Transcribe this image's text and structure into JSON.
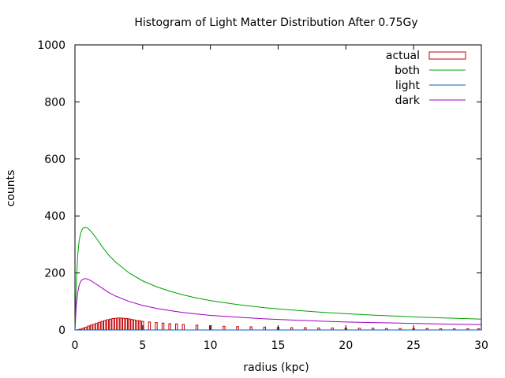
{
  "chart_data": {
    "type": "line",
    "title": "Histogram of Light Matter Distribution After 0.75Gy",
    "xlabel": "radius (kpc)",
    "ylabel": "counts",
    "xlim": [
      0,
      30
    ],
    "ylim": [
      0,
      1000
    ],
    "xticks": [
      0,
      5,
      10,
      15,
      20,
      25,
      30
    ],
    "yticks": [
      0,
      200,
      400,
      600,
      800,
      1000
    ],
    "grid": false,
    "legend_position": "top-right",
    "series": [
      {
        "name": "actual",
        "style": "histogram-bars",
        "color": "#c00000",
        "x": [
          0.2,
          0.4,
          0.6,
          0.8,
          1.0,
          1.2,
          1.4,
          1.6,
          1.8,
          2.0,
          2.2,
          2.4,
          2.6,
          2.8,
          3.0,
          3.2,
          3.4,
          3.6,
          3.8,
          4.0,
          4.2,
          4.4,
          4.6,
          4.8,
          5.0,
          5.5,
          6.0,
          6.5,
          7.0,
          7.5,
          8.0,
          9.0,
          10.0,
          11.0,
          12.0,
          13.0,
          14.0,
          15.0,
          16.0,
          17.0,
          18.0,
          19.0,
          20.0,
          21.0,
          22.0,
          23.0,
          24.0,
          25.0,
          26.0,
          27.0,
          28.0,
          29.0,
          29.8
        ],
        "values": [
          1,
          3,
          6,
          10,
          14,
          17,
          20,
          24,
          27,
          30,
          33,
          36,
          38,
          40,
          41,
          42,
          42,
          41,
          40,
          39,
          37,
          35,
          33,
          32,
          30,
          28,
          26,
          24,
          22,
          21,
          19,
          17,
          15,
          13,
          12,
          11,
          10,
          9,
          8,
          8,
          7,
          7,
          6,
          6,
          6,
          5,
          5,
          5,
          5,
          4,
          4,
          4,
          4
        ]
      },
      {
        "name": "both",
        "style": "line",
        "color": "#00a000",
        "x": [
          0,
          0.1,
          0.2,
          0.3,
          0.4,
          0.5,
          0.6,
          0.7,
          0.8,
          0.9,
          1.0,
          1.2,
          1.5,
          2.0,
          2.5,
          3.0,
          4.0,
          5.0,
          6.0,
          7.0,
          8.0,
          9.0,
          10.0,
          12.0,
          14.0,
          16.0,
          18.0,
          20.0,
          22.0,
          24.0,
          26.0,
          28.0,
          30.0
        ],
        "values": [
          0,
          170,
          260,
          310,
          336,
          350,
          357,
          360,
          360,
          358,
          355,
          345,
          327,
          293,
          262,
          238,
          200,
          172,
          152,
          136,
          123,
          112,
          103,
          89,
          78,
          70,
          63,
          57,
          52,
          48,
          44,
          41,
          38
        ]
      },
      {
        "name": "light",
        "style": "line",
        "color": "#0060c0",
        "x": [
          0,
          30
        ],
        "values": [
          0,
          0
        ]
      },
      {
        "name": "dark",
        "style": "line",
        "color": "#a000c0",
        "x": [
          0,
          0.1,
          0.2,
          0.3,
          0.4,
          0.5,
          0.6,
          0.7,
          0.8,
          0.9,
          1.0,
          1.2,
          1.5,
          2.0,
          2.5,
          3.0,
          4.0,
          5.0,
          6.0,
          7.0,
          8.0,
          9.0,
          10.0,
          12.0,
          14.0,
          16.0,
          18.0,
          20.0,
          22.0,
          24.0,
          26.0,
          28.0,
          30.0
        ],
        "values": [
          0,
          85,
          130,
          155,
          168,
          175,
          178,
          180,
          180,
          179,
          177,
          172,
          163,
          147,
          131,
          119,
          100,
          86,
          76,
          68,
          61,
          56,
          51,
          45,
          39,
          35,
          31,
          28,
          26,
          24,
          22,
          20,
          19
        ]
      }
    ]
  }
}
